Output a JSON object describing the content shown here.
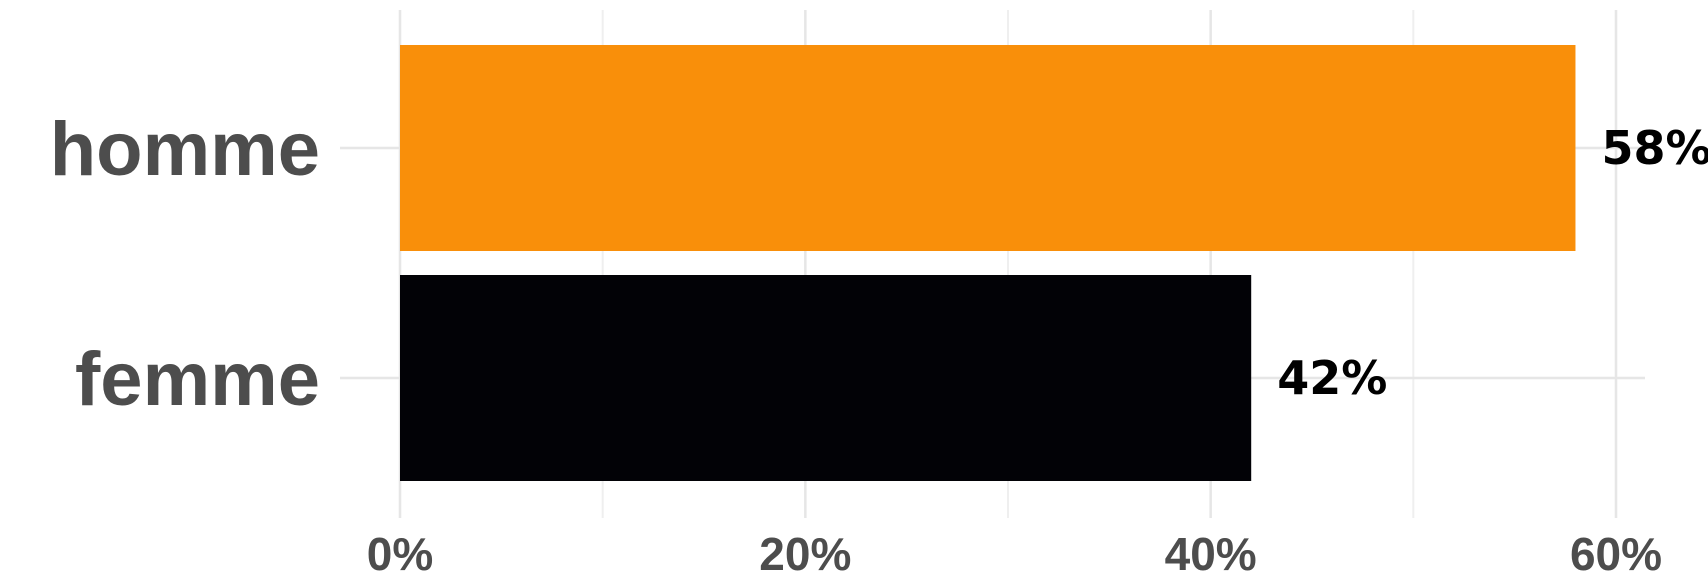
{
  "chart_data": {
    "type": "bar",
    "orientation": "horizontal",
    "categories": [
      "homme",
      "femme"
    ],
    "values": [
      58,
      42
    ],
    "data_labels": [
      "58%",
      "42%"
    ],
    "bar_colors": [
      "#f98f0a",
      "#020206"
    ],
    "title": "",
    "xlabel": "",
    "ylabel": "",
    "xlim": [
      0,
      60
    ],
    "x_ticks": [
      0,
      20,
      40,
      60
    ],
    "x_tick_labels": [
      "0%",
      "20%",
      "40%",
      "60%"
    ],
    "grid": true,
    "legend": "none"
  }
}
